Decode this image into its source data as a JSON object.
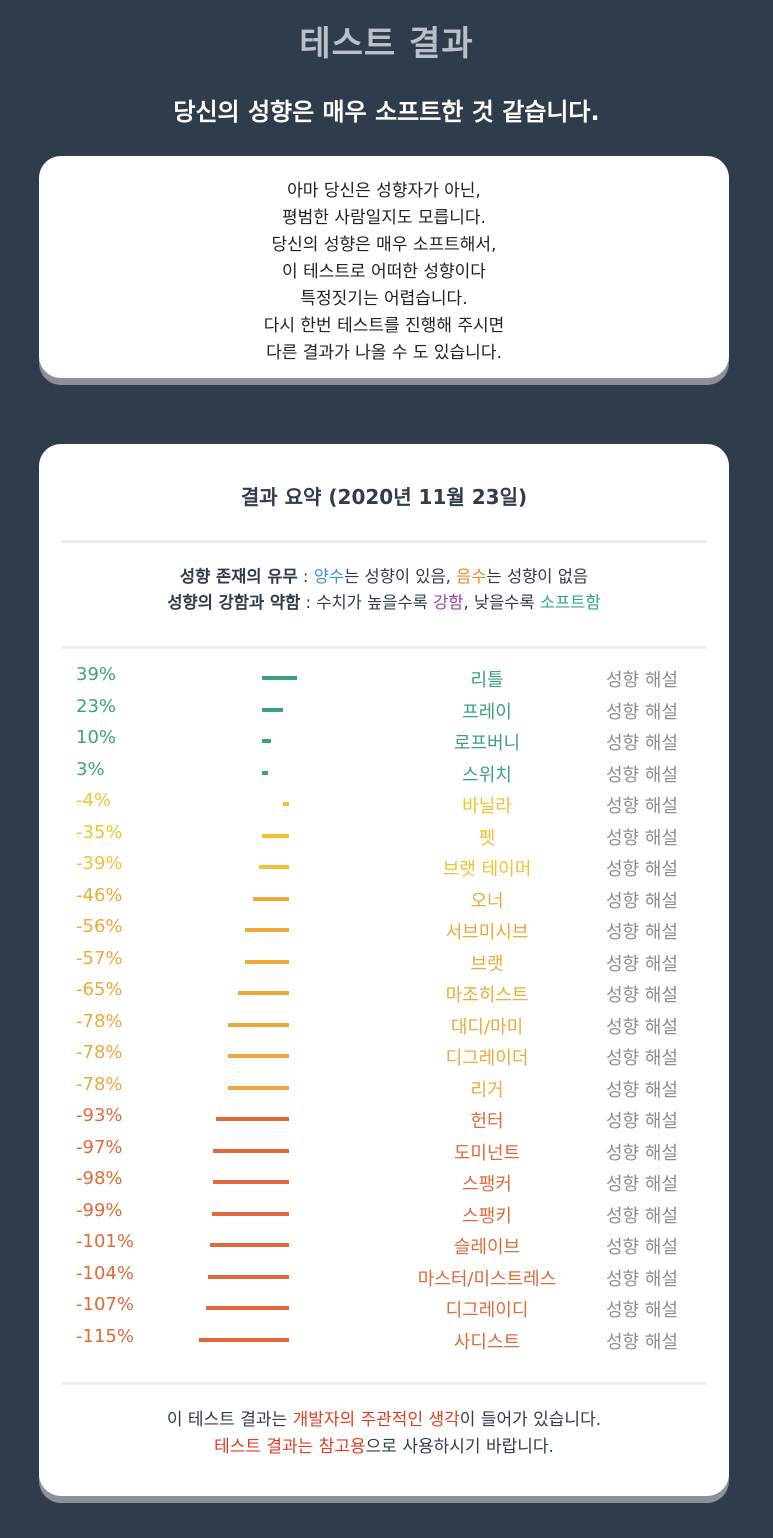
{
  "title": "테스트 결과",
  "subtitle": "당신의 성향은 매우 소프트한 것 같습니다.",
  "description": [
    "아마 당신은 성향자가 아닌,",
    "평범한 사람일지도 모릅니다.",
    "당신의 성향은 매우 소프트해서,",
    "이 테스트로 어떠한 성향이다",
    "특정짓기는 어렵습니다.",
    "다시 한번 테스트를 진행해 주시면",
    "다른 결과가 나올 수 도 있습니다."
  ],
  "summary": {
    "title": "결과 요약 (2020년 11월 23일)",
    "legend1": {
      "label": "성향 존재의 유무",
      "sep": " : ",
      "positive": "양수",
      "positive_text": "는 성향이 있음, ",
      "negative": "음수",
      "negative_text": "는 성향이 없음"
    },
    "legend2": {
      "label": "성향의 강함과 약함",
      "sep": " : 수치가 높을수록 ",
      "strong": "강함",
      "middle": ", 낮을수록 ",
      "soft": "소프트함"
    },
    "guide_label": "성향 해설",
    "colors": {
      "positive": "#3ea083",
      "low_negative": "#f2c233",
      "mid_negative": "#eda93a",
      "high_negative": "#e06a3a"
    },
    "rows": [
      {
        "value": 39,
        "pct": "39%",
        "name": "리틀",
        "tone": "positive"
      },
      {
        "value": 23,
        "pct": "23%",
        "name": "프레이",
        "tone": "positive"
      },
      {
        "value": 10,
        "pct": "10%",
        "name": "로프버니",
        "tone": "positive"
      },
      {
        "value": 3,
        "pct": "3%",
        "name": "스위치",
        "tone": "positive"
      },
      {
        "value": -4,
        "pct": "-4%",
        "name": "바닐라",
        "tone": "low_negative"
      },
      {
        "value": -35,
        "pct": "-35%",
        "name": "펫",
        "tone": "low_negative"
      },
      {
        "value": -39,
        "pct": "-39%",
        "name": "브랫 테이머",
        "tone": "low_negative"
      },
      {
        "value": -46,
        "pct": "-46%",
        "name": "오너",
        "tone": "mid_negative"
      },
      {
        "value": -56,
        "pct": "-56%",
        "name": "서브미시브",
        "tone": "mid_negative"
      },
      {
        "value": -57,
        "pct": "-57%",
        "name": "브랫",
        "tone": "mid_negative"
      },
      {
        "value": -65,
        "pct": "-65%",
        "name": "마조히스트",
        "tone": "mid_negative"
      },
      {
        "value": -78,
        "pct": "-78%",
        "name": "대디/마미",
        "tone": "mid_negative"
      },
      {
        "value": -78,
        "pct": "-78%",
        "name": "디그레이더",
        "tone": "mid_negative"
      },
      {
        "value": -78,
        "pct": "-78%",
        "name": "리거",
        "tone": "mid_negative"
      },
      {
        "value": -93,
        "pct": "-93%",
        "name": "헌터",
        "tone": "high_negative"
      },
      {
        "value": -97,
        "pct": "-97%",
        "name": "도미넌트",
        "tone": "high_negative"
      },
      {
        "value": -98,
        "pct": "-98%",
        "name": "스팽커",
        "tone": "high_negative"
      },
      {
        "value": -99,
        "pct": "-99%",
        "name": "스팽키",
        "tone": "high_negative"
      },
      {
        "value": -101,
        "pct": "-101%",
        "name": "슬레이브",
        "tone": "high_negative"
      },
      {
        "value": -104,
        "pct": "-104%",
        "name": "마스터/미스트레스",
        "tone": "high_negative"
      },
      {
        "value": -107,
        "pct": "-107%",
        "name": "디그레이디",
        "tone": "high_negative"
      },
      {
        "value": -115,
        "pct": "-115%",
        "name": "사디스트",
        "tone": "high_negative"
      }
    ]
  },
  "footer": {
    "line1_pre": "이 테스트 결과는 ",
    "line1_highlight": "개발자의 주관적인 생각",
    "line1_post": "이 들어가 있습니다.",
    "line2_highlight": "테스트 결과는 참고용",
    "line2_post": "으로 사용하시기 바랍니다."
  }
}
